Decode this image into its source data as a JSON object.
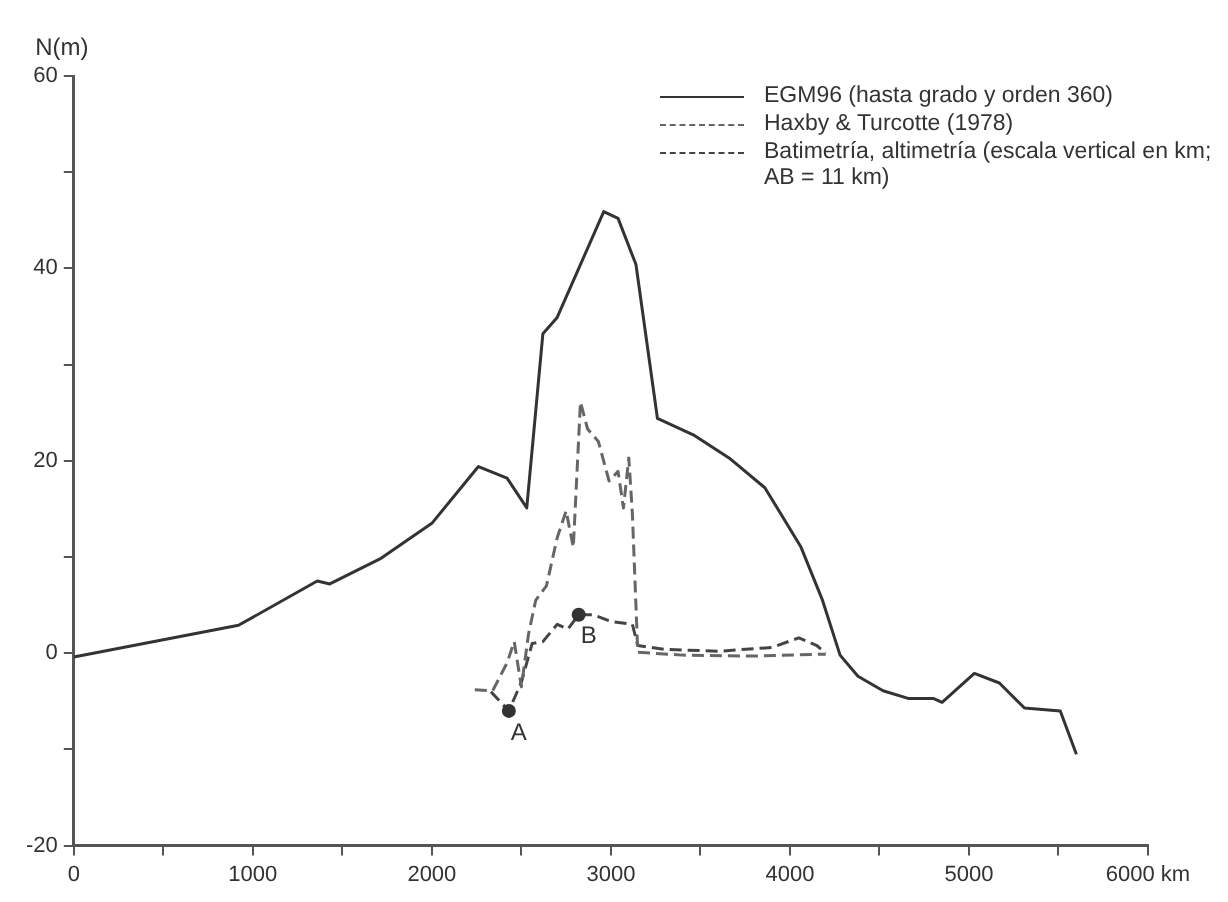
{
  "chart_data": {
    "type": "line",
    "ylabel": "N(m)",
    "xlim": [
      0,
      6000
    ],
    "ylim": [
      -20,
      60
    ],
    "xticks": [
      0,
      {
        "value": 500,
        "label": null
      },
      1000,
      {
        "value": 1500,
        "label": null
      },
      2000,
      {
        "value": 2500,
        "label": null
      },
      3000,
      {
        "value": 3500,
        "label": null
      },
      4000,
      {
        "value": 4500,
        "label": null
      },
      5000,
      {
        "value": 5500,
        "label": null
      },
      {
        "value": 6000,
        "label": "6000 km"
      }
    ],
    "yticks": [
      -20,
      {
        "value": -10,
        "label": null
      },
      0,
      {
        "value": 10,
        "label": null
      },
      20,
      {
        "value": 30,
        "label": null
      },
      40,
      {
        "value": 50,
        "label": null
      },
      60
    ],
    "grid": false,
    "legend": "top right",
    "marker": "none",
    "series": [
      {
        "name": "EGM96 (hasta grado y orden 360)",
        "color": "#333333",
        "line_style": "solid",
        "x": [
          0,
          920,
          1360,
          1430,
          1710,
          2000,
          2260,
          2420,
          2530,
          2620,
          2700,
          2960,
          3040,
          3140,
          3260,
          3460,
          3660,
          3860,
          4060,
          4180,
          4280,
          4380,
          4520,
          4660,
          4800,
          4850,
          5030,
          5170,
          5310,
          5510,
          5600
        ],
        "values": [
          -0.4,
          2.9,
          7.5,
          7.2,
          9.8,
          13.5,
          19.4,
          18.2,
          15.1,
          33.2,
          34.9,
          45.9,
          45.2,
          40.4,
          24.4,
          22.7,
          20.3,
          17.2,
          11.1,
          5.6,
          -0.2,
          -2.4,
          -3.9,
          -4.7,
          -4.7,
          -5.1,
          -2.1,
          -3.1,
          -5.7,
          -6,
          -10.5
        ]
      },
      {
        "name": "Haxby & Turcotte (1978)",
        "color": "#666666",
        "line_style": "dashed",
        "x": [
          2240,
          2340,
          2420,
          2460,
          2500,
          2540,
          2580,
          2640,
          2700,
          2750,
          2790,
          2830,
          2870,
          2930,
          2990,
          3040,
          3070,
          3100,
          3120,
          3150,
          3400,
          3800,
          4200
        ],
        "values": [
          -3.8,
          -3.9,
          -1,
          1.2,
          -3.5,
          2,
          5.5,
          7,
          12,
          14.8,
          11,
          26.1,
          23.3,
          22,
          17.9,
          18.9,
          15.1,
          20.3,
          14.5,
          0.1,
          -0.2,
          -0.3,
          -0.1
        ]
      },
      {
        "name": "Batimetría, altimetría (escala vertical en km; AB = 11 km)",
        "color": "#444444",
        "line_style": "dashed",
        "x": [
          2330,
          2430,
          2500,
          2560,
          2620,
          2700,
          2760,
          2820,
          2900,
          3000,
          3120,
          3150,
          3300,
          3600,
          3900,
          4050,
          4150,
          4200
        ],
        "values": [
          -4,
          -6,
          -3,
          1,
          1.2,
          3,
          2.5,
          4,
          4,
          3.3,
          3,
          0.8,
          0.4,
          0.2,
          0.6,
          1.6,
          0.8,
          0
        ]
      }
    ],
    "annotations": [
      {
        "text": "A",
        "x": 2430,
        "y": -6
      },
      {
        "text": "B",
        "x": 2820,
        "y": 4
      }
    ]
  }
}
